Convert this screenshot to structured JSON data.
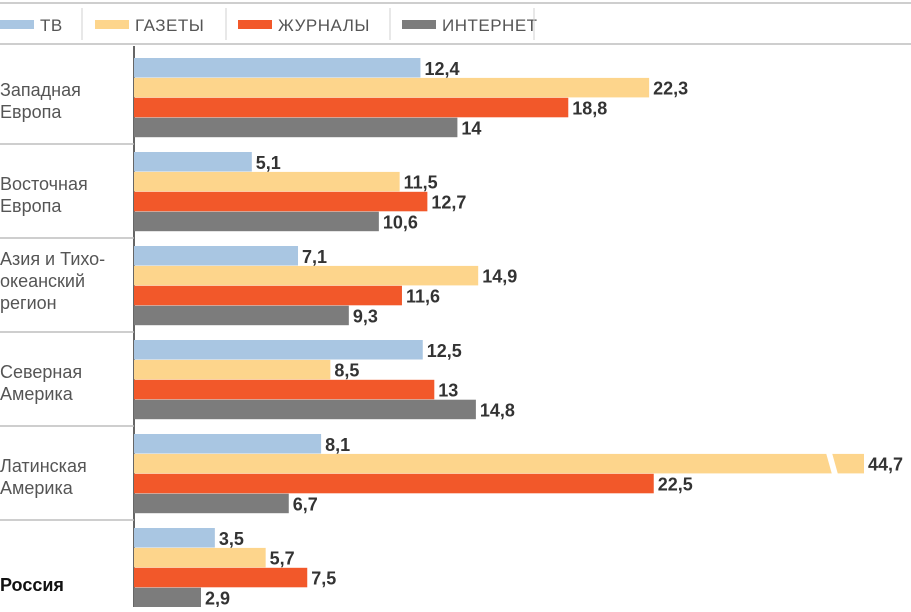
{
  "chart_data": {
    "type": "bar",
    "orientation": "horizontal",
    "legend_position": "top",
    "categories": [
      [
        "Западная",
        "Европа"
      ],
      [
        "Восточная",
        "Европа"
      ],
      [
        "Азия и Тихо-",
        "океанский",
        "регион"
      ],
      [
        "Северная",
        "Америка"
      ],
      [
        "Латинская",
        "Америка"
      ],
      [
        "Россия"
      ]
    ],
    "bold_categories": [
      "Россия"
    ],
    "series": [
      {
        "name": "ТВ",
        "color": "#a9c6e2",
        "values": [
          12.4,
          5.1,
          7.1,
          12.5,
          8.1,
          3.5
        ],
        "labels": [
          "12,4",
          "5,1",
          "7,1",
          "12,5",
          "8,1",
          "3,5"
        ]
      },
      {
        "name": "ГАЗЕТЫ",
        "color": "#fdd58c",
        "values": [
          22.3,
          11.5,
          14.9,
          8.5,
          44.7,
          5.7
        ],
        "labels": [
          "22,3",
          "11,5",
          "14,9",
          "8,5",
          "44,7",
          "5,7"
        ]
      },
      {
        "name": "ЖУРНАЛЫ",
        "color": "#f2582a",
        "values": [
          18.8,
          12.7,
          11.6,
          13,
          22.5,
          7.5
        ],
        "labels": [
          "18,8",
          "12,7",
          "11,6",
          "13",
          "22,5",
          "7,5"
        ]
      },
      {
        "name": "ИНТЕРНЕТ",
        "color": "#7c7c7c",
        "values": [
          14,
          10.6,
          9.3,
          14.8,
          6.7,
          2.9
        ],
        "labels": [
          "14",
          "10,6",
          "9,3",
          "14,8",
          "6,7",
          "2,9"
        ]
      }
    ],
    "axis_break": {
      "series": "ГАЗЕТЫ",
      "category_index": 4,
      "value": 44.7
    },
    "xlim": [
      0,
      27
    ],
    "grid": false
  }
}
